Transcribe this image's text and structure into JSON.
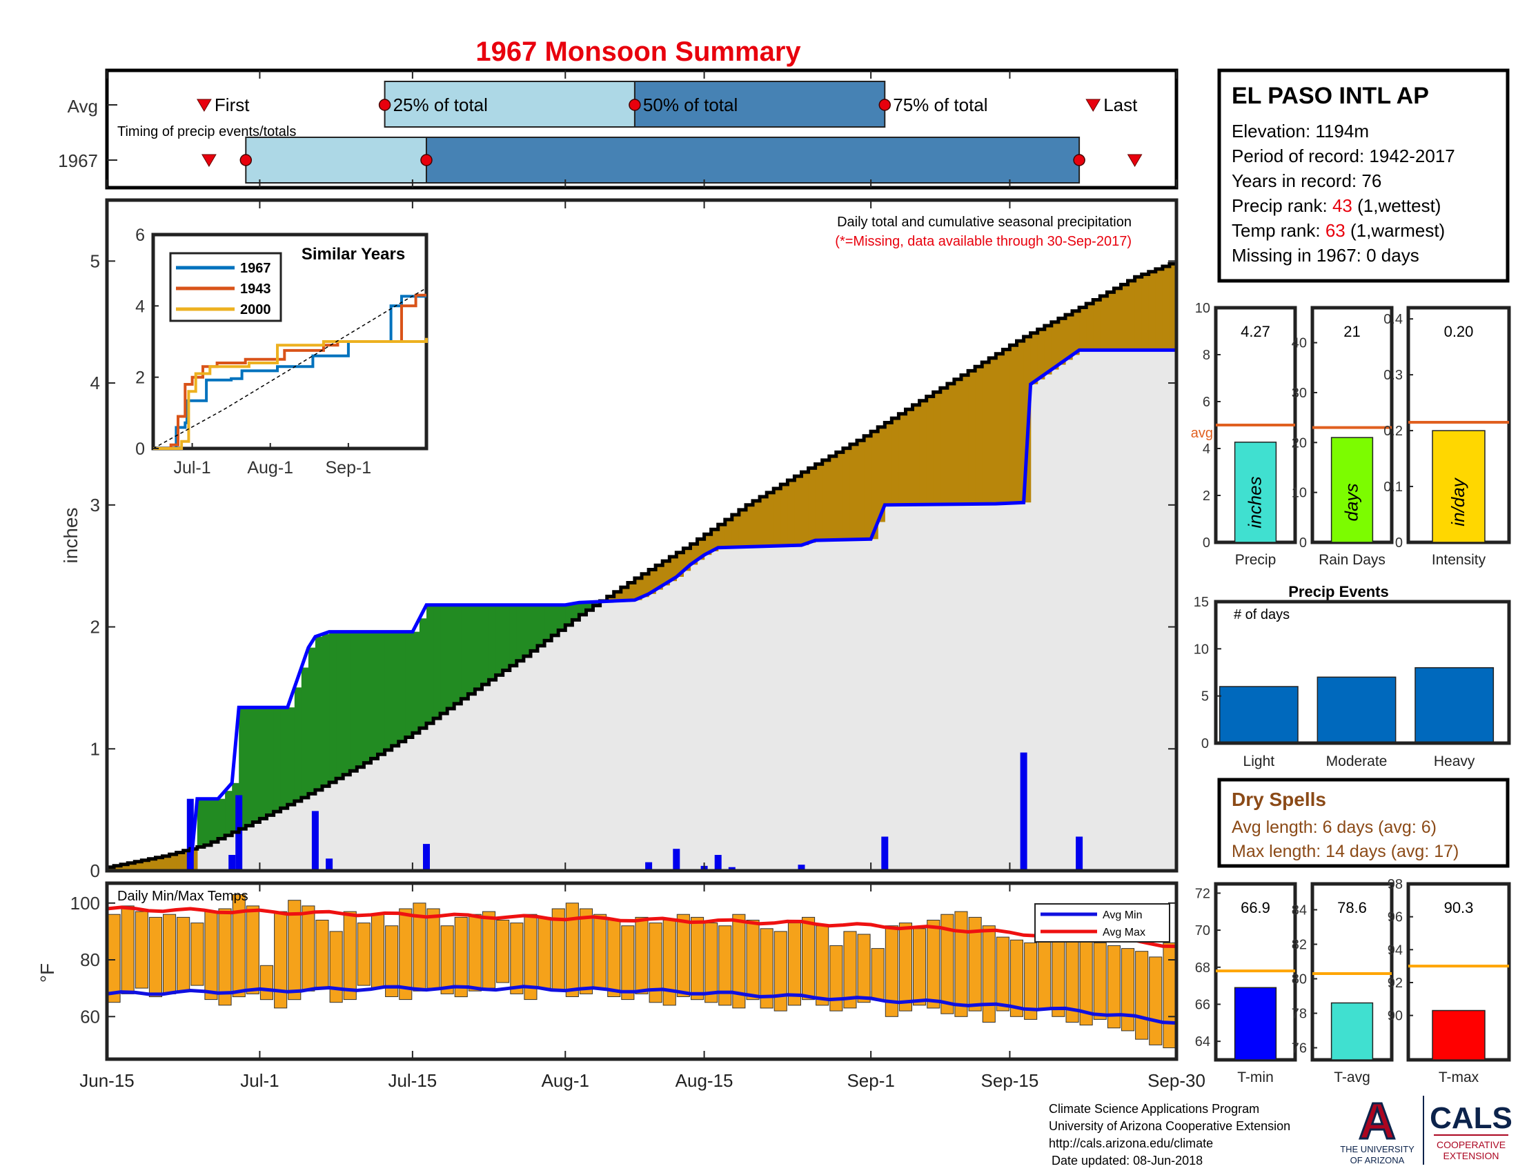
{
  "title": "1967 Monsoon Summary",
  "colors": {
    "title": "#e8000d",
    "red_text": "#e8000d",
    "brown_text": "#8b4a17",
    "cum_avg_fill": "#b8860b",
    "cum_above_fill": "#228b22",
    "bg_fill": "#e8e8e8",
    "year_line": "#0000ff",
    "tmax_bar": "#f5a21a",
    "avg_min_line": "#1010e0",
    "avg_max_line": "#ee1111",
    "timing_light": "#add8e6",
    "timing_dark": "#4682b4",
    "event_bar": "#0069bd",
    "precip_bar": "#40e0d0",
    "raindays_bar": "#7cfc00",
    "intensity_bar": "#ffd700",
    "avg_line": "#e06020",
    "temp_avg_line": "#ffa500",
    "tmin_bar": "#0000ff",
    "tavg_bar": "#40e0d0",
    "tmax_small_bar": "#ff0000"
  },
  "station": {
    "name": "EL PASO INTL AP",
    "elevation": "Elevation: 1194m",
    "period": "Period of record: 1942-2017",
    "years": "Years in record: 76",
    "precip_rank_label": "Precip rank: ",
    "precip_rank_value": "43",
    "precip_rank_note": " (1,wettest)",
    "temp_rank_label": "Temp rank: ",
    "temp_rank_value": "63",
    "temp_rank_note": " (1,warmest)",
    "missing": "Missing in 1967: 0 days"
  },
  "timing": {
    "avg_label": "Avg",
    "year_label": "1967",
    "caption": "Timing of precip events/totals",
    "first_label": "First",
    "p25_label": "25% of total",
    "p50_label": "50% of total",
    "p75_label": "75% of total",
    "last_label": "Last",
    "avg_days": {
      "first": 7,
      "p25": 20,
      "p50": 38,
      "p75": 56,
      "last": 71
    },
    "year_days": {
      "first": 7,
      "p25": 10,
      "p50": 23,
      "p75": 70,
      "last": 74
    }
  },
  "main_plot": {
    "caption": "Daily total and cumulative seasonal precipitation",
    "missing_note": "(*=Missing, data available through 30-Sep-2017)",
    "ylabel": "inches",
    "ylim": [
      0,
      5.5
    ],
    "yticks": [
      "0",
      "1",
      "2",
      "3",
      "4",
      "5"
    ]
  },
  "x_axis": {
    "tick_days": [
      0,
      11,
      22,
      33,
      43,
      55,
      65,
      77
    ],
    "tick_labels": [
      "Jun-15",
      "Jul-1",
      "Jul-15",
      "Aug-1",
      "Aug-15",
      "Sep-1",
      "Sep-15",
      "Sep-30"
    ],
    "total_days": 77
  },
  "chart_data": [
    {
      "type": "area",
      "name": "cumulative-precip",
      "x_start": "Jun-15",
      "x_end": "Sep-30",
      "y_unit": "inches",
      "series": [
        {
          "name": "avg_cumulative",
          "x": [
            0,
            4,
            7,
            10,
            14,
            18,
            22,
            26,
            30,
            34,
            38,
            42,
            46,
            50,
            54,
            58,
            62,
            66,
            70,
            74,
            77
          ],
          "values": [
            0.03,
            0.12,
            0.21,
            0.37,
            0.6,
            0.85,
            1.13,
            1.45,
            1.76,
            2.1,
            2.4,
            2.68,
            3.0,
            3.27,
            3.53,
            3.82,
            4.1,
            4.38,
            4.62,
            4.87,
            5.0
          ]
        },
        {
          "name": "year_cumulative",
          "x": [
            0,
            6,
            6.5,
            8,
            9,
            9.5,
            13,
            14.5,
            15,
            16,
            22,
            23,
            33,
            34,
            38,
            39,
            41,
            42,
            43,
            44,
            50,
            51,
            55,
            56,
            64,
            66,
            66.5,
            70,
            74,
            77
          ],
          "values": [
            0,
            0,
            0.59,
            0.59,
            0.72,
            1.34,
            1.34,
            1.83,
            1.92,
            1.96,
            1.96,
            2.18,
            2.18,
            2.2,
            2.22,
            2.27,
            2.41,
            2.51,
            2.59,
            2.65,
            2.67,
            2.71,
            2.72,
            3.0,
            3.01,
            3.02,
            3.99,
            4.27,
            4.27,
            4.27
          ]
        },
        {
          "name": "daily_precip",
          "x": [
            6,
            9,
            9.5,
            15,
            16,
            23,
            39,
            41,
            43,
            44,
            45,
            50,
            56,
            66,
            70
          ],
          "values": [
            0.59,
            0.13,
            0.62,
            0.49,
            0.1,
            0.22,
            0.07,
            0.18,
            0.04,
            0.13,
            0.03,
            0.05,
            0.28,
            0.97,
            0.28
          ]
        }
      ]
    },
    {
      "type": "line",
      "name": "similar-years",
      "title": "Similar Years",
      "ylim": [
        0,
        6
      ],
      "yticks": [
        "0",
        "2",
        "4",
        "6"
      ],
      "xticks": [
        "Jul-1",
        "Aug-1",
        "Sep-1"
      ],
      "x_tick_days": [
        11,
        33,
        55
      ],
      "series": [
        {
          "name": "1967",
          "color": "#0072bd",
          "x": [
            0,
            6,
            6.5,
            9,
            9.5,
            13,
            15,
            22,
            25,
            35,
            45,
            55,
            66,
            67,
            70,
            77
          ],
          "values": [
            0,
            0,
            0.59,
            0.72,
            1.34,
            1.34,
            1.92,
            1.96,
            2.18,
            2.3,
            2.6,
            3.0,
            3.0,
            4.0,
            4.27,
            4.27
          ]
        },
        {
          "name": "1943",
          "color": "#d95319",
          "x": [
            0,
            5,
            7,
            9,
            11,
            14,
            18,
            26,
            33,
            37,
            48,
            52,
            60,
            68,
            70,
            74,
            77
          ],
          "values": [
            0,
            0.1,
            0.9,
            1.8,
            2.0,
            2.3,
            2.4,
            2.5,
            2.5,
            2.75,
            2.9,
            3.0,
            3.0,
            3.0,
            4.0,
            4.3,
            4.3
          ]
        },
        {
          "name": "2000",
          "color": "#edb120",
          "x": [
            0,
            6,
            8,
            10,
            12,
            16,
            27,
            35,
            48,
            60,
            77
          ],
          "values": [
            0,
            0,
            0.2,
            1.6,
            2.1,
            2.3,
            2.4,
            2.9,
            3.0,
            3.0,
            3.1
          ]
        },
        {
          "name": "average",
          "color": "#000000",
          "x": [
            0,
            10,
            20,
            30,
            40,
            50,
            60,
            70,
            77
          ],
          "values": [
            0,
            0.55,
            1.1,
            1.7,
            2.3,
            2.9,
            3.5,
            4.1,
            4.5
          ]
        }
      ]
    },
    {
      "type": "bar",
      "name": "daily-temps",
      "title": "Daily Min/Max Temps",
      "ylabel": "°F",
      "ylim": [
        45,
        107
      ],
      "yticks": [
        "60",
        "80",
        "100"
      ],
      "legend": [
        "Avg Min",
        "Avg Max"
      ],
      "avg_min": {
        "x": [
          0,
          10,
          20,
          30,
          40,
          50,
          60,
          70,
          77
        ],
        "values": [
          68,
          69,
          70,
          70,
          69,
          67,
          65,
          62,
          58
        ]
      },
      "avg_max": {
        "x": [
          0,
          10,
          20,
          30,
          40,
          50,
          60,
          70,
          77
        ],
        "values": [
          98,
          97,
          96,
          95,
          94,
          93,
          91,
          88,
          85
        ]
      },
      "daily_max": [
        96,
        99,
        97,
        95,
        96,
        95,
        93,
        97,
        98,
        103,
        99,
        78,
        97,
        101,
        99,
        94,
        90,
        97,
        93,
        96,
        92,
        98,
        100,
        98,
        92,
        95,
        96,
        97,
        94,
        93,
        96,
        95,
        98,
        100,
        98,
        96,
        94,
        92,
        95,
        93,
        94,
        96,
        95,
        93,
        92,
        96,
        94,
        91,
        90,
        93,
        95,
        92,
        85,
        90,
        89,
        84,
        92,
        93,
        91,
        94,
        96,
        97,
        95,
        92,
        88,
        87,
        86,
        89,
        91,
        90,
        88,
        86,
        85,
        84,
        83,
        81,
        86
      ],
      "daily_min": [
        65,
        68,
        70,
        67,
        68,
        69,
        71,
        66,
        64,
        67,
        68,
        66,
        63,
        66,
        69,
        70,
        65,
        66,
        71,
        70,
        67,
        66,
        69,
        70,
        68,
        67,
        69,
        70,
        72,
        68,
        66,
        70,
        69,
        67,
        68,
        70,
        67,
        66,
        68,
        65,
        64,
        67,
        66,
        65,
        64,
        63,
        66,
        63,
        62,
        64,
        66,
        64,
        62,
        63,
        65,
        66,
        60,
        62,
        64,
        63,
        61,
        60,
        62,
        58,
        62,
        60,
        59,
        63,
        60,
        58,
        57,
        59,
        56,
        55,
        52,
        50,
        49
      ]
    },
    {
      "type": "bar",
      "name": "seasonal-summary",
      "bars": [
        {
          "label": "Precip",
          "unit": "inches",
          "value": 4.27,
          "value_label": "4.27",
          "avg": 5.0,
          "ylim": [
            0,
            10
          ],
          "yticks": [
            "0",
            "2",
            "4",
            "6",
            "8",
            "10"
          ],
          "avg_label": "avg"
        },
        {
          "label": "Rain Days",
          "unit": "days",
          "value": 21,
          "value_label": "21",
          "avg": 23,
          "ylim": [
            0,
            47
          ],
          "yticks": [
            "0",
            "10",
            "20",
            "30",
            "40"
          ]
        },
        {
          "label": "Intensity",
          "unit": "in/day",
          "value": 0.2,
          "value_label": "0.20",
          "avg": 0.215,
          "ylim": [
            0,
            0.42
          ],
          "yticks": [
            "0",
            "0.1",
            "0.2",
            "0.3",
            "0.4"
          ]
        }
      ]
    },
    {
      "type": "bar",
      "name": "precip-events",
      "title": "Precip Events",
      "ylabel_inside": "# of days",
      "ylim": [
        0,
        15
      ],
      "yticks": [
        "0",
        "5",
        "10",
        "15"
      ],
      "categories": [
        "Light",
        "Moderate",
        "Heavy"
      ],
      "values": [
        6,
        7,
        8
      ]
    },
    {
      "type": "bar",
      "name": "temp-summary",
      "bars": [
        {
          "label": "T-min",
          "value": 66.9,
          "value_label": "66.9",
          "avg": 67.8,
          "ylim": [
            63,
            72.5
          ],
          "yticks": [
            "64",
            "66",
            "68",
            "70",
            "72"
          ]
        },
        {
          "label": "T-avg",
          "value": 78.6,
          "value_label": "78.6",
          "avg": 80.3,
          "ylim": [
            75.3,
            85.5
          ],
          "yticks": [
            "76",
            "78",
            "80",
            "82",
            "84"
          ]
        },
        {
          "label": "T-max",
          "value": 90.3,
          "value_label": "90.3",
          "avg": 93.0,
          "ylim": [
            87.3,
            98
          ],
          "yticks": [
            "90",
            "92",
            "94",
            "96",
            "98"
          ]
        }
      ]
    }
  ],
  "dry_spells": {
    "title": "Dry Spells",
    "avg": "Avg length: 6 days (avg: 6)",
    "max": "Max length: 14 days (avg: 17)"
  },
  "footer": {
    "line1": "Climate Science Applications Program",
    "line2": "University of Arizona Cooperative Extension",
    "line3": "http://cals.arizona.edu/climate",
    "line4": "Date updated: 08-Jun-2018",
    "ua_logo": "A",
    "ua_text1": "THE UNIVERSITY",
    "ua_text2": "OF ARIZONA",
    "cals_logo": "CALS",
    "cals_sub1": "COOPERATIVE",
    "cals_sub2": "EXTENSION"
  }
}
